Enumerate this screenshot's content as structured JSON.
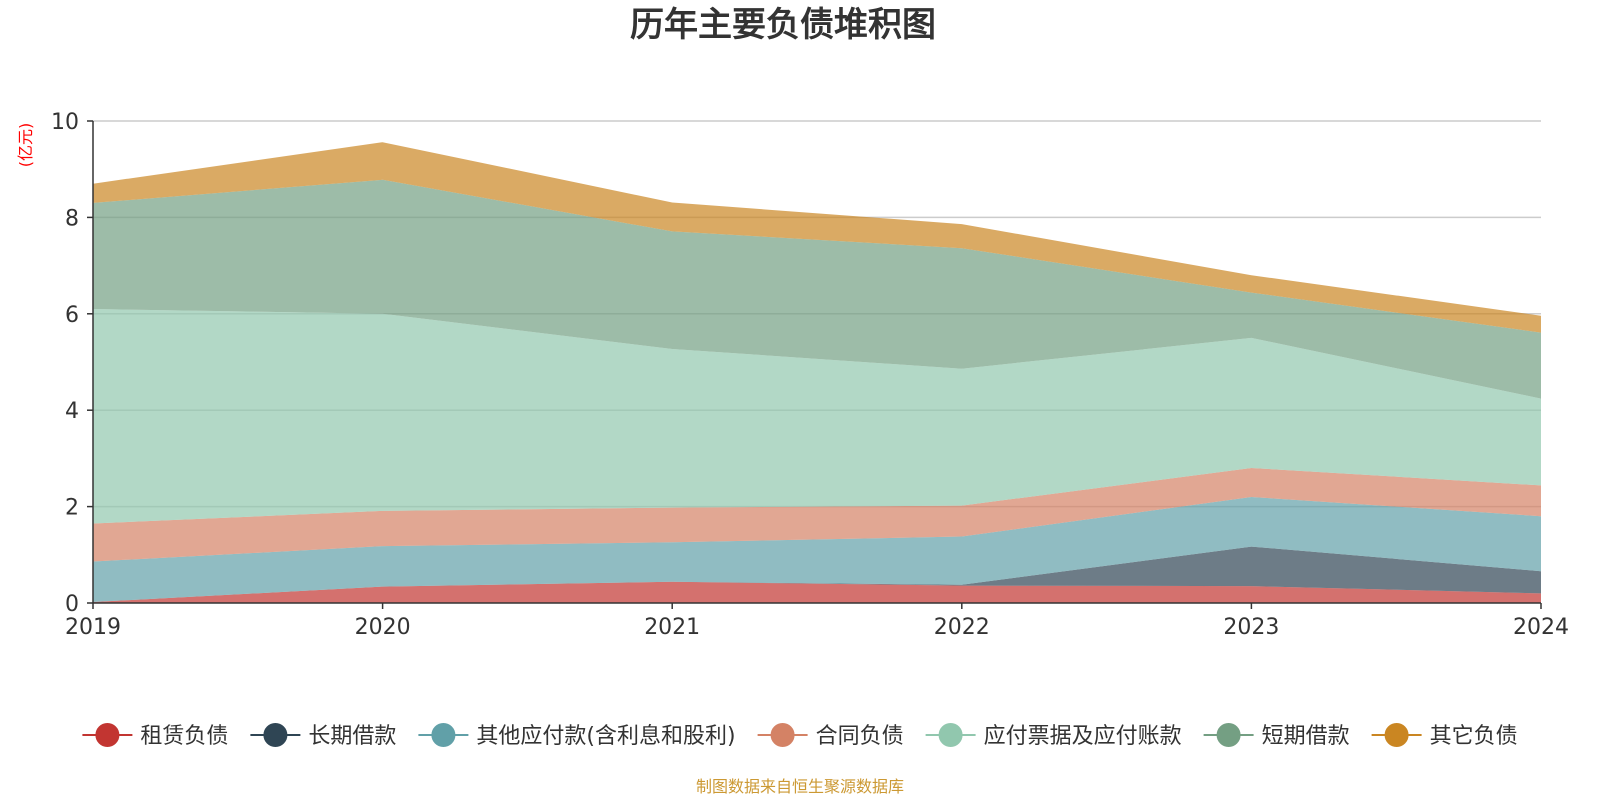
{
  "chart_data": {
    "type": "area",
    "stacked": true,
    "title": "历年主要负债堆积图",
    "unit_label": "(亿元)",
    "x": [
      "2019",
      "2020",
      "2021",
      "2022",
      "2023",
      "2024"
    ],
    "ylim": [
      0,
      10
    ],
    "yticks": [
      "0",
      "2",
      "4",
      "6",
      "8",
      "10"
    ],
    "grid": true,
    "legend_position": "bottom",
    "source": "制图数据来自恒生聚源数据库",
    "series": [
      {
        "name": "租赁负债",
        "color": "#c23531",
        "values": [
          0.02,
          0.34,
          0.44,
          0.36,
          0.35,
          0.2
        ]
      },
      {
        "name": "长期借款",
        "color": "#2f4554",
        "values": [
          0,
          0,
          0,
          0.02,
          0.82,
          0.46
        ]
      },
      {
        "name": "其他应付款(含利息和股利)",
        "color": "#61a0a8",
        "values": [
          0.84,
          0.84,
          0.82,
          1.0,
          1.03,
          1.14
        ]
      },
      {
        "name": "合同负债",
        "color": "#d48265",
        "values": [
          0.79,
          0.73,
          0.72,
          0.64,
          0.6,
          0.64
        ]
      },
      {
        "name": "应付票据及应付账款",
        "color": "#91c7ae",
        "values": [
          4.45,
          4.09,
          3.29,
          2.84,
          2.7,
          1.8
        ]
      },
      {
        "name": "短期借款",
        "color": "#749f83",
        "values": [
          2.2,
          2.78,
          2.44,
          2.5,
          0.94,
          1.37
        ]
      },
      {
        "name": "其它负债",
        "color": "#ca8622",
        "values": [
          0.4,
          0.78,
          0.6,
          0.5,
          0.36,
          0.35
        ]
      }
    ]
  }
}
